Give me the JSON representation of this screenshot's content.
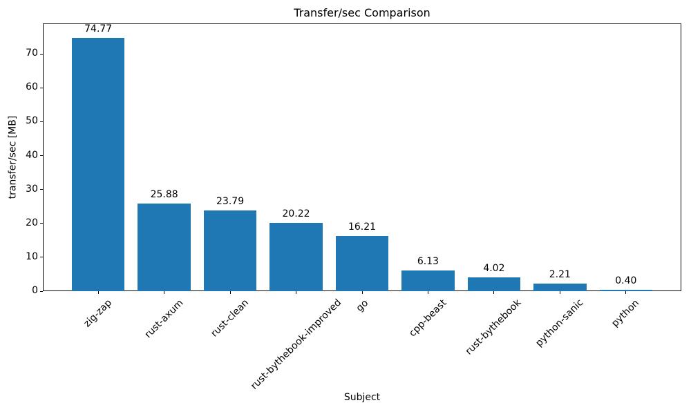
{
  "chart_data": {
    "type": "bar",
    "title": "Transfer/sec Comparison",
    "xlabel": "Subject",
    "ylabel": "transfer/sec [MB]",
    "categories": [
      "zig-zap",
      "rust-axum",
      "rust-clean",
      "rust-bythebook-improved",
      "go",
      "cpp-beast",
      "rust-bythebook",
      "python-sanic",
      "python"
    ],
    "values": [
      74.77,
      25.88,
      23.79,
      20.22,
      16.21,
      6.13,
      4.02,
      2.21,
      0.4
    ],
    "value_labels": [
      "74.77",
      "25.88",
      "23.79",
      "20.22",
      "16.21",
      "6.13",
      "4.02",
      "2.21",
      "0.40"
    ],
    "yticks": [
      0,
      10,
      20,
      30,
      40,
      50,
      60,
      70
    ],
    "ytick_labels": [
      "0",
      "10",
      "20",
      "30",
      "40",
      "50",
      "60",
      "70"
    ],
    "ylim": [
      0,
      79
    ],
    "bar_color": "#1f77b4",
    "axis_color": "#000000",
    "background_color": "#ffffff",
    "grid": false,
    "legend": null,
    "xtick_rotation": 45
  }
}
